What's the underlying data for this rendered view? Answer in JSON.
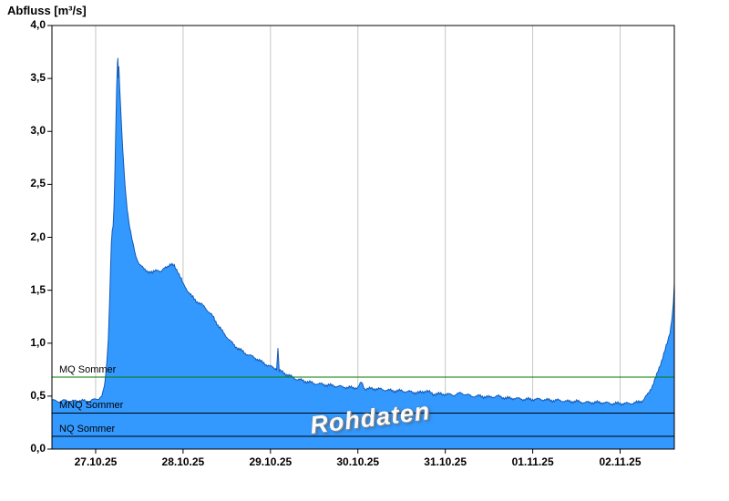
{
  "title": "Abfluss [m³/s]",
  "watermark": "Rohdaten",
  "chart_data": {
    "type": "area",
    "series_name": "Abfluss Rohdaten",
    "ylabel": "Abfluss [m³/s]",
    "ylim": [
      0,
      4
    ],
    "x_range_days": [
      0,
      7.12
    ],
    "x_axis_note": "days, left edge = 26.10.25 12:00",
    "grid": "vertical-day-lines",
    "grid_color": "#c6c6c6",
    "fill_color": "#3399ff",
    "line_color": "#1559b3",
    "noise_amplitude": 0.018,
    "y_ticks": [
      {
        "label": "0,0",
        "value": 0.0
      },
      {
        "label": "0,5",
        "value": 0.5
      },
      {
        "label": "1,0",
        "value": 1.0
      },
      {
        "label": "1,5",
        "value": 1.5
      },
      {
        "label": "2,0",
        "value": 2.0
      },
      {
        "label": "2,5",
        "value": 2.5
      },
      {
        "label": "3,0",
        "value": 3.0
      },
      {
        "label": "3,5",
        "value": 3.5
      },
      {
        "label": "4,0",
        "value": 4.0
      }
    ],
    "x_ticks": [
      {
        "label": "27.10.25",
        "pos": 0.5
      },
      {
        "label": "28.10.25",
        "pos": 1.5
      },
      {
        "label": "29.10.25",
        "pos": 2.5
      },
      {
        "label": "30.10.25",
        "pos": 3.5
      },
      {
        "label": "31.10.25",
        "pos": 4.5
      },
      {
        "label": "01.11.25",
        "pos": 5.5
      },
      {
        "label": "02.11.25",
        "pos": 6.5
      }
    ],
    "reference_lines": [
      {
        "label": "MQ Sommer",
        "value": 0.68,
        "color": "#007a00"
      },
      {
        "label": "MNQ Sommer",
        "value": 0.34,
        "color": "#000000"
      },
      {
        "label": "NQ Sommer",
        "value": 0.12,
        "color": "#000000"
      }
    ],
    "points": [
      [
        0.0,
        0.46
      ],
      [
        0.08,
        0.45
      ],
      [
        0.16,
        0.46
      ],
      [
        0.24,
        0.45
      ],
      [
        0.32,
        0.46
      ],
      [
        0.4,
        0.45
      ],
      [
        0.46,
        0.46
      ],
      [
        0.5,
        0.47
      ],
      [
        0.54,
        0.48
      ],
      [
        0.57,
        0.5
      ],
      [
        0.59,
        0.55
      ],
      [
        0.61,
        0.65
      ],
      [
        0.63,
        0.85
      ],
      [
        0.645,
        1.05
      ],
      [
        0.66,
        1.4
      ],
      [
        0.67,
        1.7
      ],
      [
        0.68,
        1.95
      ],
      [
        0.69,
        2.05
      ],
      [
        0.7,
        2.1
      ],
      [
        0.71,
        2.28
      ],
      [
        0.72,
        2.6
      ],
      [
        0.73,
        3.0
      ],
      [
        0.74,
        3.4
      ],
      [
        0.75,
        3.65
      ],
      [
        0.755,
        3.71
      ],
      [
        0.76,
        3.52
      ],
      [
        0.765,
        3.62
      ],
      [
        0.775,
        3.42
      ],
      [
        0.785,
        3.25
      ],
      [
        0.8,
        2.98
      ],
      [
        0.82,
        2.68
      ],
      [
        0.84,
        2.45
      ],
      [
        0.86,
        2.28
      ],
      [
        0.88,
        2.15
      ],
      [
        0.9,
        2.05
      ],
      [
        0.93,
        1.92
      ],
      [
        0.96,
        1.82
      ],
      [
        1.0,
        1.75
      ],
      [
        1.05,
        1.7
      ],
      [
        1.1,
        1.68
      ],
      [
        1.15,
        1.66
      ],
      [
        1.2,
        1.7
      ],
      [
        1.25,
        1.67
      ],
      [
        1.3,
        1.72
      ],
      [
        1.35,
        1.74
      ],
      [
        1.4,
        1.73
      ],
      [
        1.44,
        1.68
      ],
      [
        1.48,
        1.6
      ],
      [
        1.5,
        1.56
      ],
      [
        1.55,
        1.5
      ],
      [
        1.6,
        1.44
      ],
      [
        1.65,
        1.4
      ],
      [
        1.7,
        1.37
      ],
      [
        1.75,
        1.34
      ],
      [
        1.8,
        1.29
      ],
      [
        1.85,
        1.24
      ],
      [
        1.9,
        1.17
      ],
      [
        1.95,
        1.11
      ],
      [
        2.0,
        1.06
      ],
      [
        2.05,
        1.01
      ],
      [
        2.1,
        0.97
      ],
      [
        2.15,
        0.94
      ],
      [
        2.2,
        0.91
      ],
      [
        2.25,
        0.89
      ],
      [
        2.3,
        0.87
      ],
      [
        2.35,
        0.85
      ],
      [
        2.4,
        0.82
      ],
      [
        2.45,
        0.8
      ],
      [
        2.5,
        0.78
      ],
      [
        2.55,
        0.76
      ],
      [
        2.57,
        0.76
      ],
      [
        2.585,
        0.95
      ],
      [
        2.6,
        0.74
      ],
      [
        2.65,
        0.72
      ],
      [
        2.7,
        0.7
      ],
      [
        2.75,
        0.68
      ],
      [
        2.8,
        0.66
      ],
      [
        2.85,
        0.65
      ],
      [
        2.9,
        0.64
      ],
      [
        2.95,
        0.63
      ],
      [
        3.0,
        0.62
      ],
      [
        3.1,
        0.61
      ],
      [
        3.2,
        0.6
      ],
      [
        3.3,
        0.59
      ],
      [
        3.4,
        0.58
      ],
      [
        3.5,
        0.58
      ],
      [
        3.54,
        0.63
      ],
      [
        3.58,
        0.57
      ],
      [
        3.7,
        0.57
      ],
      [
        3.8,
        0.56
      ],
      [
        3.9,
        0.55
      ],
      [
        4.0,
        0.55
      ],
      [
        4.1,
        0.54
      ],
      [
        4.2,
        0.53
      ],
      [
        4.28,
        0.55
      ],
      [
        4.36,
        0.52
      ],
      [
        4.5,
        0.52
      ],
      [
        4.6,
        0.51
      ],
      [
        4.68,
        0.53
      ],
      [
        4.8,
        0.5
      ],
      [
        4.9,
        0.5
      ],
      [
        5.0,
        0.49
      ],
      [
        5.1,
        0.5
      ],
      [
        5.2,
        0.48
      ],
      [
        5.3,
        0.48
      ],
      [
        5.4,
        0.47
      ],
      [
        5.5,
        0.47
      ],
      [
        5.6,
        0.47
      ],
      [
        5.7,
        0.46
      ],
      [
        5.8,
        0.46
      ],
      [
        5.9,
        0.45
      ],
      [
        6.0,
        0.45
      ],
      [
        6.1,
        0.44
      ],
      [
        6.2,
        0.44
      ],
      [
        6.3,
        0.44
      ],
      [
        6.4,
        0.43
      ],
      [
        6.5,
        0.43
      ],
      [
        6.6,
        0.43
      ],
      [
        6.7,
        0.44
      ],
      [
        6.76,
        0.46
      ],
      [
        6.82,
        0.52
      ],
      [
        6.87,
        0.6
      ],
      [
        6.92,
        0.7
      ],
      [
        6.96,
        0.8
      ],
      [
        7.0,
        0.9
      ],
      [
        7.04,
        1.0
      ],
      [
        7.07,
        1.1
      ],
      [
        7.09,
        1.22
      ],
      [
        7.11,
        1.38
      ],
      [
        7.12,
        1.56
      ]
    ]
  }
}
